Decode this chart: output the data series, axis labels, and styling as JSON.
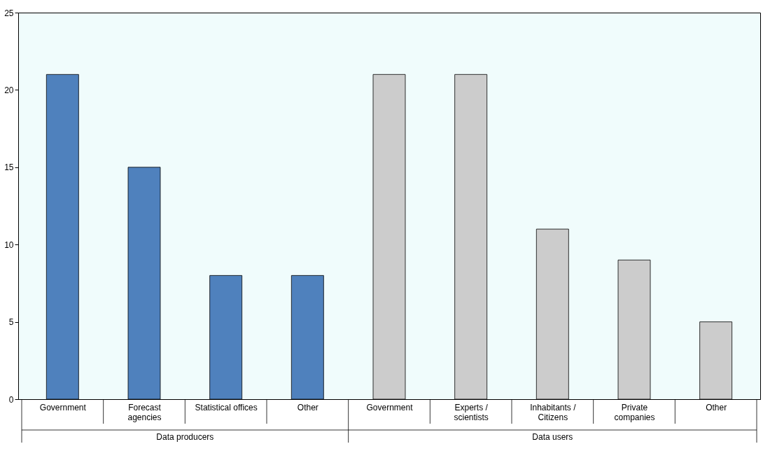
{
  "chart_data": {
    "type": "bar",
    "categories": [
      "Government",
      "Forecast\nagencies",
      "Statistical offices",
      "Other",
      "Government",
      "Experts /\nscientists",
      "Inhabitants /\nCitizens",
      "Private\ncompanies",
      "Other"
    ],
    "series": [
      {
        "color": "#4f81bd",
        "values": [
          21,
          15,
          8,
          8,
          null,
          null,
          null,
          null,
          null
        ]
      },
      {
        "color": "#cccccc",
        "values": [
          null,
          null,
          null,
          null,
          21,
          21,
          11,
          9,
          5
        ]
      }
    ],
    "annotations": [
      "Data producers",
      "Data users"
    ],
    "ylim": [
      0,
      25
    ],
    "yticks": [
      0,
      5,
      10,
      15,
      20,
      25
    ],
    "grid": false,
    "legend": false
  }
}
